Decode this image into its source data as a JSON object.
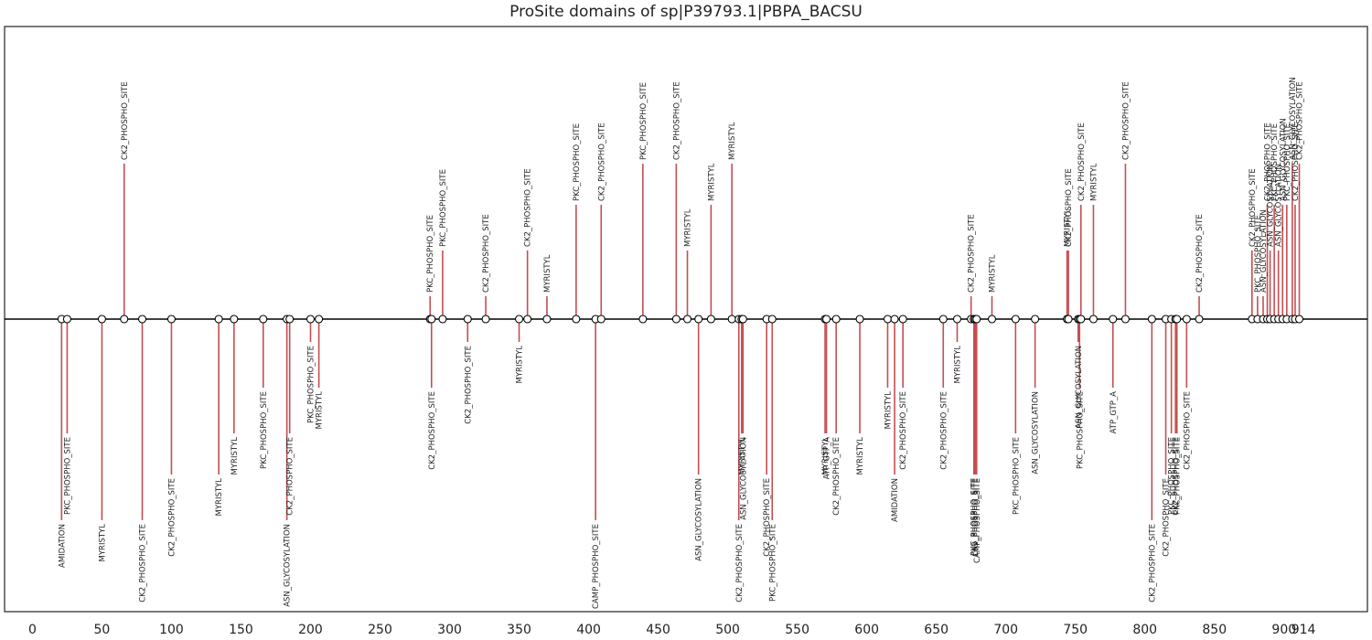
{
  "chart_data": {
    "type": "lollipop",
    "title": "ProSite domains of sp|P39793.1|PBPA_BACSU",
    "xlabel": "",
    "ylabel": "",
    "xlim": [
      -20,
      960
    ],
    "ylim": [
      -3.2,
      3.2
    ],
    "xticks": [
      0,
      50,
      100,
      150,
      200,
      250,
      300,
      350,
      400,
      450,
      500,
      550,
      600,
      650,
      700,
      750,
      800,
      850,
      900,
      914
    ],
    "grid": false,
    "colors": {
      "stem": "#c44e52",
      "baseline": "#000000",
      "marker_fill": "#ffffff",
      "marker_edge": "#000000",
      "frame": "#222222"
    },
    "sites": [
      {
        "pos": 21,
        "height": -2.2,
        "name": "AMIDATION"
      },
      {
        "pos": 25,
        "height": -1.25,
        "name": "PKC_PHOSPHO_SITE"
      },
      {
        "pos": 50,
        "height": -2.2,
        "name": "MYRISTYL"
      },
      {
        "pos": 66,
        "height": 1.7,
        "name": "CK2_PHOSPHO_SITE"
      },
      {
        "pos": 79,
        "height": -2.2,
        "name": "CK2_PHOSPHO_SITE"
      },
      {
        "pos": 100,
        "height": -1.7,
        "name": "CK2_PHOSPHO_SITE"
      },
      {
        "pos": 134,
        "height": -1.7,
        "name": "MYRISTYL"
      },
      {
        "pos": 145,
        "height": -1.25,
        "name": "MYRISTYL"
      },
      {
        "pos": 166,
        "height": -0.75,
        "name": "PKC_PHOSPHO_SITE"
      },
      {
        "pos": 183,
        "height": -2.2,
        "name": "ASN_GLYCOSYLATION"
      },
      {
        "pos": 185,
        "height": -1.25,
        "name": "CK2_PHOSPHO_SITE"
      },
      {
        "pos": 200,
        "height": -0.25,
        "name": "PKC_PHOSPHO_SITE"
      },
      {
        "pos": 206,
        "height": -0.75,
        "name": "MYRISTYL"
      },
      {
        "pos": 286,
        "height": 0.25,
        "name": "PKC_PHOSPHO_SITE"
      },
      {
        "pos": 287,
        "height": -0.75,
        "name": "CK2_PHOSPHO_SITE"
      },
      {
        "pos": 295,
        "height": 0.75,
        "name": "PKC_PHOSPHO_SITE"
      },
      {
        "pos": 313,
        "height": -0.25,
        "name": "CK2_PHOSPHO_SITE"
      },
      {
        "pos": 326,
        "height": 0.25,
        "name": "CK2_PHOSPHO_SITE"
      },
      {
        "pos": 350,
        "height": -0.25,
        "name": "MYRISTYL"
      },
      {
        "pos": 356,
        "height": 0.75,
        "name": "CK2_PHOSPHO_SITE"
      },
      {
        "pos": 370,
        "height": 0.25,
        "name": "MYRISTYL"
      },
      {
        "pos": 391,
        "height": 1.25,
        "name": "PKC_PHOSPHO_SITE"
      },
      {
        "pos": 405,
        "height": -2.2,
        "name": "CAMP_PHOSPHO_SITE"
      },
      {
        "pos": 409,
        "height": 1.25,
        "name": "CK2_PHOSPHO_SITE"
      },
      {
        "pos": 439,
        "height": 1.7,
        "name": "PKC_PHOSPHO_SITE"
      },
      {
        "pos": 463,
        "height": 1.7,
        "name": "CK2_PHOSPHO_SITE"
      },
      {
        "pos": 471,
        "height": 0.75,
        "name": "MYRISTYL"
      },
      {
        "pos": 479,
        "height": -1.7,
        "name": "ASN_GLYCOSYLATION"
      },
      {
        "pos": 488,
        "height": 1.25,
        "name": "MYRISTYL"
      },
      {
        "pos": 503,
        "height": 1.7,
        "name": "MYRISTYL"
      },
      {
        "pos": 508,
        "height": -2.2,
        "name": "CK2_PHOSPHO_SITE"
      },
      {
        "pos": 510,
        "height": -1.25,
        "name": "MYRISTYL"
      },
      {
        "pos": 511,
        "height": -1.25,
        "name": "ASN_GLYCOSYLATION"
      },
      {
        "pos": 528,
        "height": -1.7,
        "name": "CK2_PHOSPHO_SITE"
      },
      {
        "pos": 532,
        "height": -2.2,
        "name": "PKC_PHOSPHO_SITE"
      },
      {
        "pos": 570,
        "height": -1.25,
        "name": "MYRISTYL"
      },
      {
        "pos": 571,
        "height": -1.25,
        "name": "ATP_GTP_A"
      },
      {
        "pos": 578,
        "height": -1.25,
        "name": "CK2_PHOSPHO_SITE"
      },
      {
        "pos": 595,
        "height": -1.25,
        "name": "MYRISTYL"
      },
      {
        "pos": 615,
        "height": -0.75,
        "name": "MYRISTYL"
      },
      {
        "pos": 620,
        "height": -1.7,
        "name": "AMIDATION"
      },
      {
        "pos": 626,
        "height": -0.75,
        "name": "CK2_PHOSPHO_SITE"
      },
      {
        "pos": 655,
        "height": -0.75,
        "name": "CK2_PHOSPHO_SITE"
      },
      {
        "pos": 665,
        "height": -0.25,
        "name": "MYRISTYL"
      },
      {
        "pos": 675,
        "height": 0.25,
        "name": "CK2_PHOSPHO_SITE"
      },
      {
        "pos": 677,
        "height": -1.7,
        "name": "PKC_PHOSPHO_SITE"
      },
      {
        "pos": 678,
        "height": -1.7,
        "name": "CK2_PHOSPHO_SITE"
      },
      {
        "pos": 679,
        "height": -1.7,
        "name": "CAMP_PHOSPHO_SITE"
      },
      {
        "pos": 690,
        "height": 0.25,
        "name": "MYRISTYL"
      },
      {
        "pos": 707,
        "height": -1.25,
        "name": "PKC_PHOSPHO_SITE"
      },
      {
        "pos": 721,
        "height": -0.75,
        "name": "ASN_GLYCOSYLATION"
      },
      {
        "pos": 744,
        "height": 0.75,
        "name": "MYRISTYL"
      },
      {
        "pos": 745,
        "height": 0.75,
        "name": "CK2_PHOSPHO_SITE"
      },
      {
        "pos": 752,
        "height": -0.25,
        "name": "ASN_GLYCOSYLATION"
      },
      {
        "pos": 753,
        "height": -0.75,
        "name": "PKC_PHOSPHO_SITE"
      },
      {
        "pos": 754,
        "height": 1.25,
        "name": "CK2_PHOSPHO_SITE"
      },
      {
        "pos": 763,
        "height": 1.25,
        "name": "MYRISTYL"
      },
      {
        "pos": 777,
        "height": -0.75,
        "name": "ATP_GTP_A"
      },
      {
        "pos": 786,
        "height": 1.7,
        "name": "CK2_PHOSPHO_SITE"
      },
      {
        "pos": 805,
        "height": -2.2,
        "name": "CK2_PHOSPHO_SITE"
      },
      {
        "pos": 815,
        "height": -1.7,
        "name": "CK2_PHOSPHO_SITE"
      },
      {
        "pos": 819,
        "height": -1.25,
        "name": "PKC_PHOSPHO_SITE"
      },
      {
        "pos": 822,
        "height": -1.25,
        "name": "CK2_PHOSPHO_SITE"
      },
      {
        "pos": 823,
        "height": -1.25,
        "name": "PKC_PHOSPHO_SITE"
      },
      {
        "pos": 830,
        "height": -0.75,
        "name": "CK2_PHOSPHO_SITE"
      },
      {
        "pos": 839,
        "height": 0.25,
        "name": "CK2_PHOSPHO_SITE"
      },
      {
        "pos": 877,
        "height": 0.75,
        "name": "CK2_PHOSPHO_SITE"
      },
      {
        "pos": 881,
        "height": 0.25,
        "name": "PKC_PHOSPHO_SITE"
      },
      {
        "pos": 885,
        "height": 0.25,
        "name": "ASN_GLYCOSYLATION"
      },
      {
        "pos": 888,
        "height": 1.25,
        "name": "CK2_PHOSPHO_SITE"
      },
      {
        "pos": 890,
        "height": 0.75,
        "name": "ASN_GLYCOSYLATION"
      },
      {
        "pos": 893,
        "height": 1.25,
        "name": "PKC_PHOSPHO_SITE"
      },
      {
        "pos": 896,
        "height": 0.75,
        "name": "ASN_GLYCOSYLATION"
      },
      {
        "pos": 899,
        "height": 1.25,
        "name": "ASN_GLYCOSYLATION"
      },
      {
        "pos": 902,
        "height": 1.25,
        "name": "PKC_PHOSPHO_SITE"
      },
      {
        "pos": 906,
        "height": 1.7,
        "name": "ASN_GLYCOSYLATION"
      },
      {
        "pos": 908,
        "height": 1.25,
        "name": "CK2_PHOSPHO_SITE"
      },
      {
        "pos": 911,
        "height": 1.7,
        "name": "CK2_PHOSPHO_SITE"
      }
    ]
  }
}
